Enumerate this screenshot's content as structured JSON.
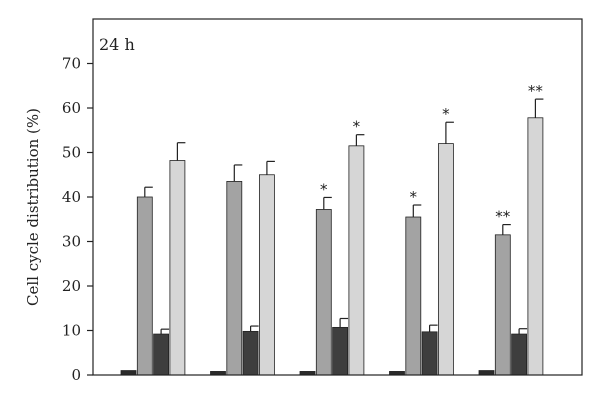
{
  "chart_data": {
    "type": "bar",
    "annotation": "24 h",
    "ylabel": "Cell cycle distribution (%)",
    "xlabel": "",
    "ylim": [
      0,
      80
    ],
    "yticks": [
      0,
      10,
      20,
      30,
      40,
      50,
      60,
      70
    ],
    "grid": false,
    "groups": 5,
    "series": [
      {
        "color": "#2a2a2a",
        "values": [
          1.0,
          0.8,
          0.8,
          0.8,
          1.0
        ],
        "errors": [
          0,
          0,
          0,
          0,
          0
        ],
        "significance": [
          "",
          "",
          "",
          "",
          ""
        ]
      },
      {
        "color": "#a3a3a3",
        "values": [
          40.0,
          43.5,
          37.2,
          35.5,
          31.5
        ],
        "errors": [
          2.2,
          3.7,
          2.7,
          2.7,
          2.3
        ],
        "significance": [
          "",
          "",
          "*",
          "*",
          "**"
        ]
      },
      {
        "color": "#3e3e3e",
        "values": [
          9.2,
          9.8,
          10.7,
          9.7,
          9.2
        ],
        "errors": [
          1.1,
          1.2,
          2.0,
          1.5,
          1.2
        ],
        "significance": [
          "",
          "",
          "",
          "",
          ""
        ]
      },
      {
        "color": "#d6d6d6",
        "values": [
          48.2,
          45.0,
          51.5,
          52.0,
          57.8
        ],
        "errors": [
          4.0,
          3.0,
          2.5,
          4.8,
          4.2
        ],
        "significance": [
          "",
          "",
          "*",
          "*",
          "**"
        ]
      }
    ]
  }
}
